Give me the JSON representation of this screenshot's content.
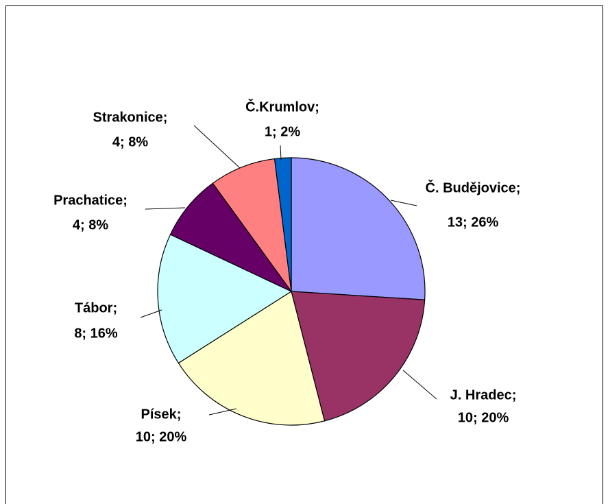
{
  "chart_data": {
    "type": "pie",
    "categories": [
      "Č. Budějovice;",
      "J. Hradec;",
      "Písek;",
      "Tábor;",
      "Prachatice;",
      "Strakonice;",
      "Č.Krumlov;"
    ],
    "values": [
      13,
      10,
      10,
      8,
      4,
      4,
      1
    ],
    "value_labels": [
      "13; 26%",
      "10; 20%",
      "10; 20%",
      "8; 16%",
      "4; 8%",
      "4; 8%",
      "1; 2%"
    ],
    "colors": [
      "#9999ff",
      "#993366",
      "#ffffcc",
      "#ccffff",
      "#660066",
      "#ff8080",
      "#0066cc"
    ]
  }
}
